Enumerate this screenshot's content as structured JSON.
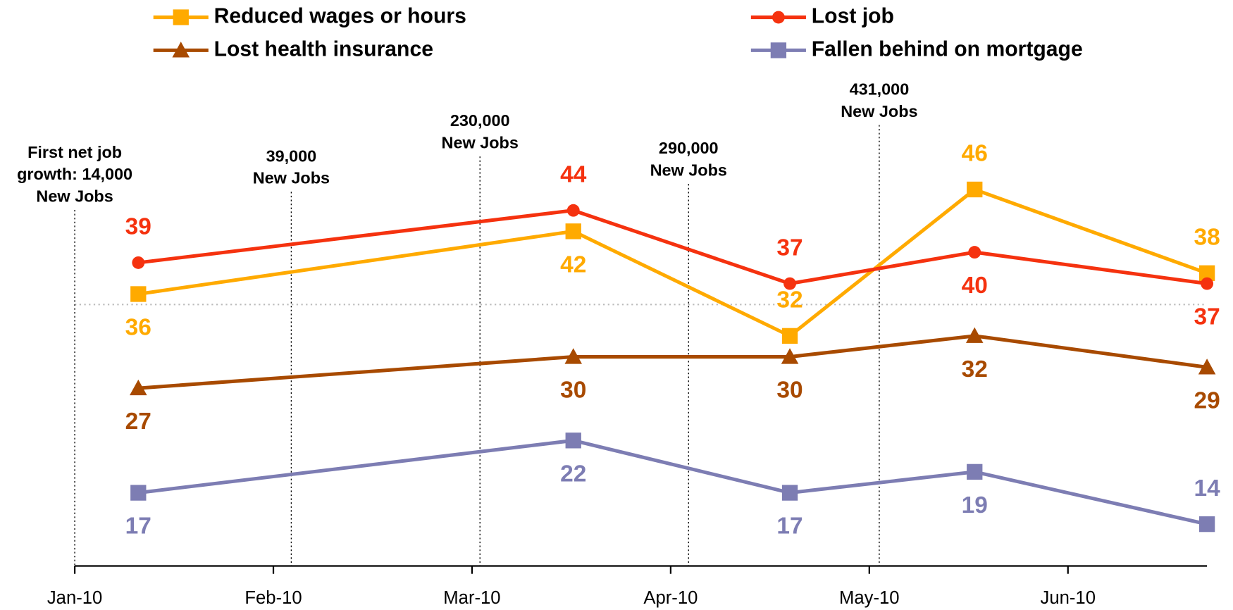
{
  "chart_data": {
    "type": "line",
    "x": [
      0.32,
      2.51,
      3.6,
      4.53,
      5.7
    ],
    "xlim": [
      0,
      5.7
    ],
    "xticks": [
      {
        "value": 0,
        "label": "Jan-10"
      },
      {
        "value": 1,
        "label": "Feb-10"
      },
      {
        "value": 2,
        "label": "Mar-10"
      },
      {
        "value": 3,
        "label": "Apr-10"
      },
      {
        "value": 4,
        "label": "May-10"
      },
      {
        "value": 5,
        "label": "Jun-10"
      }
    ],
    "ylim": [
      10,
      56
    ],
    "reference_line": 35,
    "series": [
      {
        "name": "Reduced wages or hours",
        "color": "#ffaa00",
        "marker": "square",
        "values": [
          36,
          42,
          32,
          46,
          38
        ]
      },
      {
        "name": "Lost job",
        "color": "#f5320f",
        "marker": "circle",
        "values": [
          39,
          44,
          37,
          40,
          37
        ]
      },
      {
        "name": "Lost health insurance",
        "color": "#a84a00",
        "marker": "triangle",
        "values": [
          27,
          30,
          30,
          32,
          29
        ]
      },
      {
        "name": "Fallen behind on mortgage",
        "color": "#7d7db3",
        "marker": "square",
        "values": [
          17,
          22,
          17,
          19,
          14
        ]
      }
    ],
    "annotations": [
      {
        "x": 0,
        "text": [
          "First net job",
          "growth: 14,000",
          "New Jobs"
        ]
      },
      {
        "x": 1.09,
        "text": [
          "39,000",
          "New Jobs"
        ]
      },
      {
        "x": 2.04,
        "text": [
          "230,000",
          "New Jobs"
        ]
      },
      {
        "x": 3.09,
        "text": [
          "290,000",
          "New Jobs"
        ]
      },
      {
        "x": 4.05,
        "text": [
          "431,000",
          "New Jobs"
        ]
      }
    ]
  }
}
